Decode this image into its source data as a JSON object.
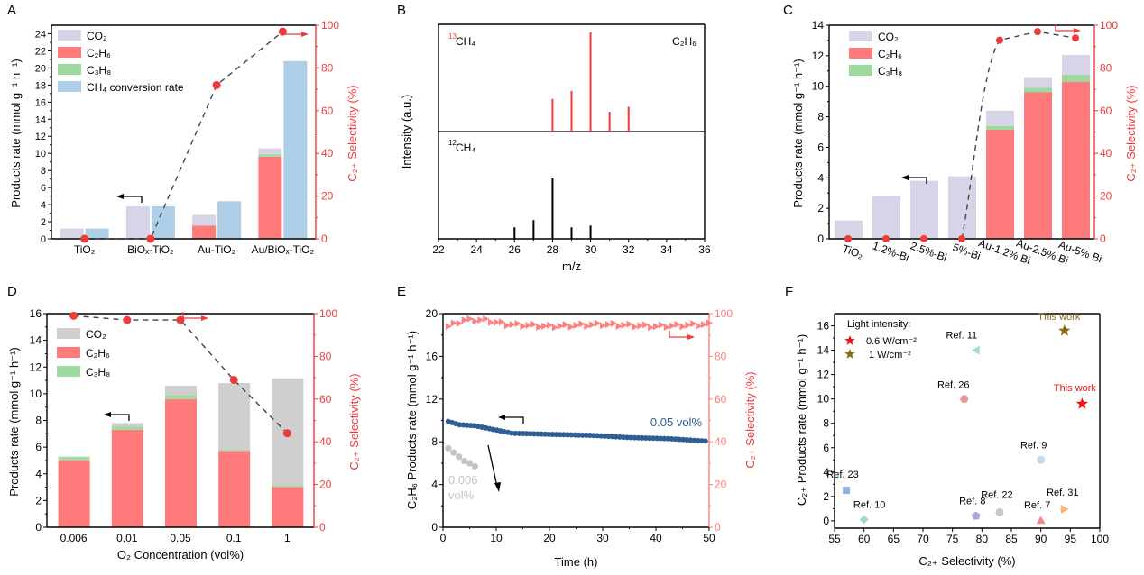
{
  "colors": {
    "co2_a": "#d6d4e6",
    "co2_d": "#cfcfcf",
    "c2h6": "#ff7a7a",
    "c3h8": "#9ed99e",
    "ch4conv": "#aecde6",
    "sel": "#ee3b3b",
    "sel_light": "#ff8080",
    "blue_series": "#2f5d96",
    "grey_series": "#c4c4c4",
    "gold": "#8a6d10",
    "red_star": "#ee1111"
  },
  "chart_data": [
    {
      "panel": "A",
      "type": "bar",
      "categories": [
        "TiO₂",
        "BiOₓ-TiO₂",
        "Au-TiO₂",
        "Au/BiOₓ-TiO₂"
      ],
      "ylabel": "Products rate (mmol g⁻¹ h⁻¹)",
      "y2label": "C₂₊ Selectivity (%)",
      "ylim": [
        0,
        25
      ],
      "yticks": [
        0,
        2,
        4,
        6,
        8,
        10,
        12,
        14,
        16,
        18,
        20,
        22,
        24
      ],
      "y2lim": [
        0,
        100
      ],
      "y2ticks": [
        0,
        20,
        40,
        60,
        80,
        100
      ],
      "legend": [
        "CO₂",
        "C₂H₆",
        "C₃H₈",
        "CH₄ conversion rate"
      ],
      "stacked": [
        {
          "name": "C₂H₆",
          "values": [
            0,
            0,
            1.55,
            9.6
          ]
        },
        {
          "name": "C₃H₈",
          "values": [
            0,
            0,
            0,
            0.3
          ]
        },
        {
          "name": "CO₂",
          "values": [
            1.2,
            3.8,
            1.25,
            0.7
          ]
        }
      ],
      "ch4_conversion": [
        1.2,
        3.8,
        4.4,
        20.8
      ],
      "selectivity": [
        0,
        0,
        72,
        97
      ]
    },
    {
      "panel": "B",
      "type": "bar",
      "xlabel": "m/z",
      "ylabel": "Intensity (a.u.)",
      "xlim": [
        22,
        36
      ],
      "xticks": [
        22,
        24,
        26,
        28,
        30,
        32,
        34,
        36
      ],
      "label_top_sup": "13",
      "label_top": "CH₄",
      "label_bottom_sup": "12",
      "label_bottom": "CH₄",
      "species": "C₂H₆",
      "top_13CH4": {
        "mz": [
          28,
          29,
          30,
          31,
          32
        ],
        "intensity": [
          0.33,
          0.41,
          1.0,
          0.2,
          0.25
        ]
      },
      "bottom_12CH4": {
        "mz": [
          26,
          27,
          28,
          29,
          30
        ],
        "intensity": [
          0.19,
          0.31,
          1.0,
          0.19,
          0.22
        ]
      }
    },
    {
      "panel": "C",
      "type": "bar",
      "categories": [
        "TiO₂",
        "1.2%-Bi",
        "2.5%-Bi",
        "5%-Bi",
        "Au-1.2% Bi",
        "Au-2.5% Bi",
        "Au-5% Bi"
      ],
      "ylabel": "Products rate (mmol g⁻¹ h⁻¹)",
      "y2label": "C₂₊ Selectivity (%)",
      "ylim": [
        0,
        14
      ],
      "yticks": [
        0,
        2,
        4,
        6,
        8,
        10,
        12,
        14
      ],
      "y2lim": [
        0,
        100
      ],
      "y2ticks": [
        0,
        20,
        40,
        60,
        80,
        100
      ],
      "legend": [
        "CO₂",
        "C₂H₆",
        "C₃H₈"
      ],
      "stacked": [
        {
          "name": "C₂H₆",
          "values": [
            0,
            0,
            0,
            0,
            7.15,
            9.6,
            10.3
          ]
        },
        {
          "name": "C₃H₈",
          "values": [
            0,
            0,
            0,
            0,
            0.25,
            0.3,
            0.45
          ]
        },
        {
          "name": "CO₂",
          "values": [
            1.2,
            2.8,
            3.8,
            4.1,
            1.0,
            0.7,
            1.3
          ]
        }
      ],
      "selectivity": [
        0,
        0,
        0,
        0,
        93,
        97,
        94
      ]
    },
    {
      "panel": "D",
      "type": "bar",
      "categories": [
        "0.006",
        "0.01",
        "0.05",
        "0.1",
        "1"
      ],
      "xlabel": "O₂ Concentration (vol%)",
      "ylabel": "Products rate (mmol g⁻¹ h⁻¹)",
      "y2label": "C₂₊ Selectivity (%)",
      "ylim": [
        0,
        16
      ],
      "yticks": [
        0,
        2,
        4,
        6,
        8,
        10,
        12,
        14,
        16
      ],
      "y2lim": [
        0,
        100
      ],
      "y2ticks": [
        0,
        20,
        40,
        60,
        80,
        100
      ],
      "legend": [
        "CO₂",
        "C₂H₆",
        "C₃H₈"
      ],
      "stacked": [
        {
          "name": "C₂H₆",
          "values": [
            5.0,
            7.3,
            9.6,
            5.7,
            3.0
          ]
        },
        {
          "name": "C₃H₈",
          "values": [
            0.25,
            0.25,
            0.3,
            0.1,
            0.15
          ]
        },
        {
          "name": "CO₂",
          "values": [
            0.05,
            0.25,
            0.7,
            5.0,
            8.0
          ]
        }
      ],
      "selectivity": [
        99,
        97,
        97,
        69,
        44
      ]
    },
    {
      "panel": "E",
      "type": "scatter",
      "xlabel": "Time (h)",
      "ylabel": "C₂H₆ Products rate (mmol g⁻¹ h⁻¹)",
      "y2label": "C₂₊ Selectivity (%)",
      "xlim": [
        0,
        50
      ],
      "xticks": [
        0,
        10,
        20,
        30,
        40,
        50
      ],
      "ylim": [
        0,
        20
      ],
      "yticks": [
        0,
        4,
        8,
        12,
        16,
        20
      ],
      "y2lim": [
        0,
        100
      ],
      "y2ticks": [
        0,
        20,
        40,
        60,
        80,
        100
      ],
      "series": [
        {
          "name": "0.05 vol%",
          "x_start": 1,
          "x_end": 50,
          "anchors": [
            [
              1,
              9.9
            ],
            [
              3,
              9.6
            ],
            [
              6,
              9.5
            ],
            [
              10,
              9.1
            ],
            [
              13,
              8.8
            ],
            [
              20,
              8.7
            ],
            [
              28,
              8.6
            ],
            [
              35,
              8.4
            ],
            [
              42,
              8.3
            ],
            [
              50,
              8.05
            ]
          ]
        },
        {
          "name": "0.006 vol%",
          "x": [
            1,
            2,
            3,
            4,
            5,
            6
          ],
          "y": [
            7.4,
            7.0,
            6.6,
            6.2,
            6.0,
            5.7
          ]
        },
        {
          "name": "selectivity",
          "x_start": 1,
          "x_end": 50,
          "anchors": [
            [
              1,
              94
            ],
            [
              4,
              97
            ],
            [
              8,
              97
            ],
            [
              12,
              95
            ],
            [
              20,
              94
            ],
            [
              30,
              95
            ],
            [
              40,
              94
            ],
            [
              50,
              95
            ]
          ]
        }
      ],
      "annotation_main": "0.05 vol%",
      "annotation_grey_1": "0.006",
      "annotation_grey_2": "vol%"
    },
    {
      "panel": "F",
      "type": "scatter",
      "xlabel": "C₂₊ Selectivity (%)",
      "ylabel": "C₂₊ Products rate (mmol g⁻¹ h⁻¹)",
      "xlim": [
        55,
        100
      ],
      "xticks": [
        55,
        60,
        65,
        70,
        75,
        80,
        85,
        90,
        95,
        100
      ],
      "ylim": [
        -0.6,
        17
      ],
      "yticks": [
        0,
        2,
        4,
        6,
        8,
        10,
        12,
        14,
        16
      ],
      "legend_title": "Light intensity:",
      "legend": [
        "0.6 W/cm⁻²",
        "1 W/cm⁻²"
      ],
      "points": [
        {
          "label": "This work",
          "x": 94,
          "y": 15.6,
          "marker": "star",
          "color": "#8a6d10"
        },
        {
          "label": "This work",
          "x": 97,
          "y": 9.6,
          "marker": "star",
          "color": "#ee1111"
        },
        {
          "label": "Ref. 11",
          "x": 79,
          "y": 14,
          "marker": "tri-left",
          "color": "#a5e0c0"
        },
        {
          "label": "Ref. 26",
          "x": 77,
          "y": 10,
          "marker": "circle",
          "color": "#e89a9a"
        },
        {
          "label": "Ref. 9",
          "x": 90,
          "y": 5,
          "marker": "circle",
          "color": "#c8d8ee"
        },
        {
          "label": "Ref. 23",
          "x": 57,
          "y": 2.5,
          "marker": "square",
          "color": "#8fb0d8"
        },
        {
          "label": "Ref. 22",
          "x": 83,
          "y": 0.7,
          "marker": "circle",
          "color": "#c8c8c8"
        },
        {
          "label": "Ref. 31",
          "x": 94,
          "y": 0.95,
          "marker": "tri-right",
          "color": "#f8b27a"
        },
        {
          "label": "Ref. 10",
          "x": 60,
          "y": 0.1,
          "marker": "diamond",
          "color": "#9ee0b8"
        },
        {
          "label": "Ref. 8",
          "x": 79,
          "y": 0.4,
          "marker": "pentagon",
          "color": "#a9a9e0"
        },
        {
          "label": "Ref. 7",
          "x": 90,
          "y": 0.05,
          "marker": "tri-up",
          "color": "#f08a8a"
        }
      ]
    }
  ],
  "panel_labels": [
    "A",
    "B",
    "C",
    "D",
    "E",
    "F"
  ]
}
